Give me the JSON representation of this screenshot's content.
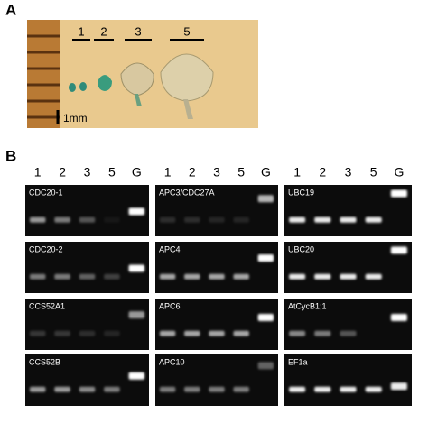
{
  "panel_a": {
    "label": "A",
    "leaf_labels": [
      "1",
      "2",
      "3",
      "5"
    ],
    "scale_label": "1mm"
  },
  "panel_b": {
    "label": "B",
    "lanes": [
      "1",
      "2",
      "3",
      "5",
      "G"
    ],
    "gels": [
      [
        "CDC20-1",
        "CDC20-2",
        "CCS52A1",
        "CCS52B"
      ],
      [
        "APC3/CDC27A",
        "APC4",
        "APC6",
        "APC10"
      ],
      [
        "UBC19",
        "UBC20",
        "AtCycB1;1",
        "EF1a"
      ]
    ]
  }
}
